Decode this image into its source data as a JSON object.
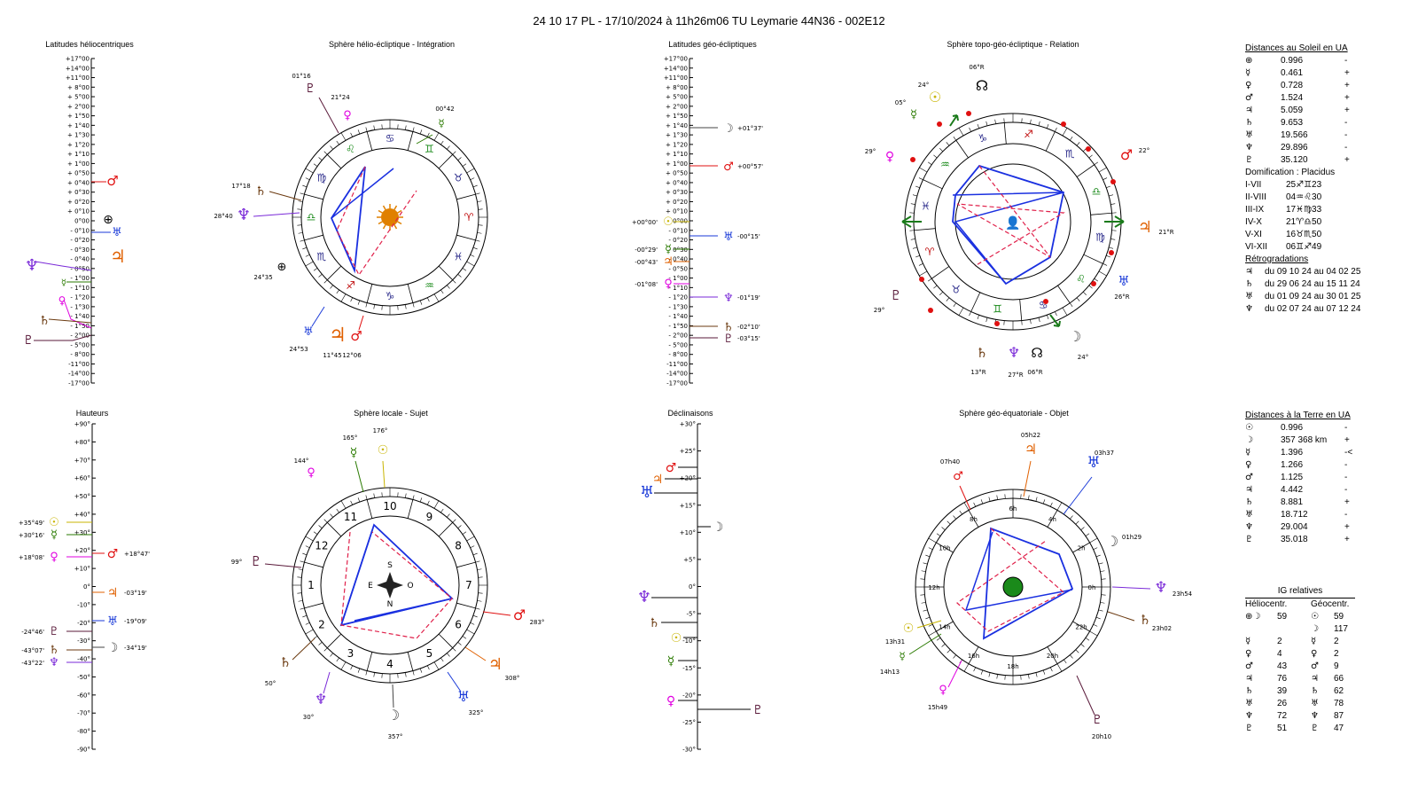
{
  "header": {
    "title": "24 10 17 PL   -  17/10/2024 à 11h26m06 TU  Leymarie  44N36 - 002E12"
  },
  "panels": {
    "lat_helio": "Latitudes héliocentriques",
    "helio_sphere": "Sphère hélio-écliptique - Intégration",
    "lat_geo": "Latitudes géo-écliptiques",
    "topo_sphere": "Sphère topo-géo-écliptique - Relation",
    "hauteurs": "Hauteurs",
    "local_sphere": "Sphère locale - Sujet",
    "declinaisons": "Déclinaisons",
    "equat_sphere": "Sphère géo-équatoriale - Objet"
  },
  "colors": {
    "sun": "#c8b400",
    "moon": "#444444",
    "mercury": "#2a7a00",
    "venus": "#e000e0",
    "mars": "#e01010",
    "jupiter": "#e06000",
    "saturn": "#6b3a10",
    "uranus": "#1a3ad8",
    "neptune": "#7a2ad8",
    "pluto": "#5a1a3a",
    "earth": "#000000",
    "blue": "#1a30e0",
    "dash": "#e0204a"
  },
  "glyphs": {
    "sun": "☉",
    "moon": "☽",
    "mercury": "☿",
    "venus": "♀",
    "mars": "♂",
    "jupiter": "♃",
    "saturn": "♄",
    "uranus": "♅",
    "neptune": "♆",
    "pluto": "♇",
    "earth": "⊕",
    "node": "☊"
  },
  "scale_helio": [
    "+17°00",
    "+14°00",
    "+11°00",
    "+ 8°00",
    "+ 5°00",
    "+ 2°00",
    "+ 1°50",
    "+ 1°40",
    "+ 1°30",
    "+ 1°20",
    "+ 1°10",
    "+ 1°00",
    "+ 0°50",
    "+ 0°40",
    "+ 0°30",
    "+ 0°20",
    "+ 0°10",
    "0°00",
    "- 0°10",
    "- 0°20",
    "- 0°30",
    "- 0°40",
    "- 0°50",
    "- 1°00",
    "- 1°10",
    "- 1°20",
    "- 1°30",
    "- 1°40",
    "- 1°50",
    "- 2°00",
    "- 5°00",
    "- 8°00",
    "-11°00",
    "-14°00",
    "-17°00"
  ],
  "scale_hauteurs": [
    "+90°",
    "+80°",
    "+70°",
    "+60°",
    "+50°",
    "+40°",
    "+30°",
    "+20°",
    "+10°",
    "0°",
    "-10°",
    "-20°",
    "-30°",
    "-40°",
    "-50°",
    "-60°",
    "-70°",
    "-80°",
    "-90°"
  ],
  "scale_decl": [
    "+30°",
    "+25°",
    "+20°",
    "+15°",
    "+10°",
    "+5°",
    "0°",
    "-5°",
    "-10°",
    "-15°",
    "-20°",
    "-25°",
    "-30°"
  ],
  "helio_labels": {
    "mars_lat": "",
    "earth_lat": ""
  },
  "geo_lat_labels": {
    "moon": "+01°37'",
    "mars": "+00°57'",
    "sun": "+00°00'",
    "uranus": "-00°15'",
    "mercury": "-00°29'",
    "jupiter": "-00°43'",
    "venus": "-01°08'",
    "neptune": "-01°19'",
    "saturn": "-02°10'",
    "pluto": "-03°15'"
  },
  "hauteur_labels": {
    "sun": "+35°49'",
    "mercury": "+30°16'",
    "venus": "+18°08'",
    "mars": "+18°47'",
    "jupiter": "-03°19'",
    "uranus": "-19°09'",
    "pluto": "-24°46'",
    "moon": "-34°19'",
    "saturn": "-43°07'",
    "neptune": "-43°22'"
  },
  "helio_sphere_labels": {
    "pluto": "01°16",
    "venus": "21°24",
    "mercury": "00°42",
    "saturn": "17°18",
    "neptune": "28°40",
    "earth": "24°35",
    "uranus": "24°53",
    "jupiter": "11°45",
    "mars": "12°06"
  },
  "topo_labels": {
    "node_top": "06°R",
    "sun": "24°",
    "mercury": "05°",
    "mars": "22°",
    "venus": "29°",
    "jupiter": "21°R",
    "pluto": "29°",
    "uranus": "26°R",
    "moon": "24°",
    "saturn": "13°R",
    "neptune": "27°R",
    "node_bottom": "06°R"
  },
  "local_labels": {
    "mercury": "165°",
    "sun": "176°",
    "venus": "144°",
    "pluto": "99°",
    "mars": "283°",
    "jupiter": "308°",
    "saturn": "50°",
    "neptune": "30°",
    "uranus": "325°",
    "moon": "357°",
    "S": "S",
    "N": "N",
    "E": "E",
    "O": "O"
  },
  "equat_labels": {
    "mars": "07h40",
    "jupiter": "05h22",
    "uranus": "03h37",
    "moon": "01h29",
    "neptune": "23h54",
    "saturn": "23h02",
    "sun": "13h31",
    "mercury": "14h13",
    "venus": "15h49",
    "pluto": "20h10"
  },
  "dist_soleil": {
    "title": "Distances au Soleil en UA",
    "rows": [
      {
        "p": "earth",
        "v": "0.996",
        "s": "-"
      },
      {
        "p": "mercury",
        "v": "0.461",
        "s": "+"
      },
      {
        "p": "venus",
        "v": "0.728",
        "s": "+"
      },
      {
        "p": "mars",
        "v": "1.524",
        "s": "+"
      },
      {
        "p": "jupiter",
        "v": "5.059",
        "s": "+"
      },
      {
        "p": "saturn",
        "v": "9.653",
        "s": "-"
      },
      {
        "p": "uranus",
        "v": "19.566",
        "s": "-"
      },
      {
        "p": "neptune",
        "v": "29.896",
        "s": "-"
      },
      {
        "p": "pluto",
        "v": "35.120",
        "s": "+"
      }
    ]
  },
  "domification": {
    "title": "Domification : Placidus",
    "rows": [
      {
        "k": "I-VII",
        "v": "25♐♊23"
      },
      {
        "k": "II-VIII",
        "v": "04♒♌30"
      },
      {
        "k": "III-IX",
        "v": "17♓♍33"
      },
      {
        "k": "IV-X",
        "v": "21♈♎50"
      },
      {
        "k": "V-XI",
        "v": "16♉♏50"
      },
      {
        "k": "VI-XII",
        "v": "06♊♐49"
      }
    ]
  },
  "retro": {
    "title": "Rétrogradations",
    "rows": [
      {
        "p": "jupiter",
        "v": "du 09 10 24 au 04 02 25"
      },
      {
        "p": "saturn",
        "v": "du 29 06 24 au 15 11 24"
      },
      {
        "p": "uranus",
        "v": "du 01 09 24 au 30 01 25"
      },
      {
        "p": "neptune",
        "v": "du 02 07 24 au 07 12 24"
      }
    ]
  },
  "dist_terre": {
    "title": "Distances à la Terre en UA",
    "rows": [
      {
        "p": "sun",
        "v": "0.996",
        "s": "-"
      },
      {
        "p": "moon",
        "v": "357 368 km",
        "s": "+"
      },
      {
        "p": "mercury",
        "v": "1.396",
        "s": "-<"
      },
      {
        "p": "venus",
        "v": "1.266",
        "s": "-"
      },
      {
        "p": "mars",
        "v": "1.125",
        "s": "-"
      },
      {
        "p": "jupiter",
        "v": "4.442",
        "s": "-"
      },
      {
        "p": "saturn",
        "v": "8.881",
        "s": "+"
      },
      {
        "p": "uranus",
        "v": "18.712",
        "s": "-"
      },
      {
        "p": "neptune",
        "v": "29.004",
        "s": "+"
      },
      {
        "p": "pluto",
        "v": "35.018",
        "s": "+"
      }
    ]
  },
  "ig": {
    "title": "IG relatives",
    "col1": "Héliocentr.",
    "col2": "Géocentr.",
    "rows": [
      {
        "g1": "⊕☽",
        "v1": "59",
        "g2": "☉",
        "v2": "59"
      },
      {
        "g1": "",
        "v1": "",
        "g2": "☽",
        "v2": "117"
      },
      {
        "g1": "☿",
        "v1": "2",
        "g2": "☿",
        "v2": "2"
      },
      {
        "g1": "♀",
        "v1": "4",
        "g2": "♀",
        "v2": "2"
      },
      {
        "g1": "♂",
        "v1": "43",
        "g2": "♂",
        "v2": "9"
      },
      {
        "g1": "♃",
        "v1": "76",
        "g2": "♃",
        "v2": "66"
      },
      {
        "g1": "♄",
        "v1": "39",
        "g2": "♄",
        "v2": "62"
      },
      {
        "g1": "♅",
        "v1": "26",
        "g2": "♅",
        "v2": "78"
      },
      {
        "g1": "♆",
        "v1": "72",
        "g2": "♆",
        "v2": "87"
      },
      {
        "g1": "♇",
        "v1": "51",
        "g2": "♇",
        "v2": "47"
      }
    ]
  }
}
